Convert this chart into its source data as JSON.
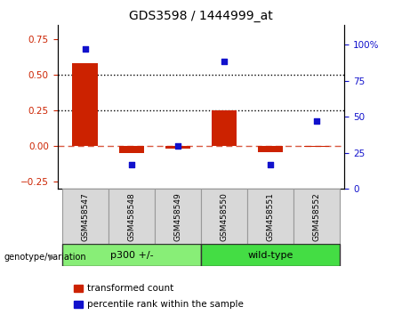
{
  "title": "GDS3598 / 1444999_at",
  "categories": [
    "GSM458547",
    "GSM458548",
    "GSM458549",
    "GSM458550",
    "GSM458551",
    "GSM458552"
  ],
  "bar_values": [
    0.585,
    -0.045,
    -0.015,
    0.255,
    -0.04,
    -0.005
  ],
  "scatter_values": [
    97,
    17,
    30,
    88,
    17,
    47
  ],
  "bar_color": "#cc2200",
  "scatter_color": "#1111cc",
  "ylim_left": [
    -0.3,
    0.85
  ],
  "ylim_right": [
    0,
    113.33
  ],
  "yticks_left": [
    -0.25,
    0.0,
    0.25,
    0.5,
    0.75
  ],
  "yticks_right": [
    0,
    25,
    50,
    75,
    100
  ],
  "hlines": [
    0.5,
    0.25
  ],
  "hline_y0": 0.0,
  "group1_label": "p300 +/-",
  "group2_label": "wild-type",
  "group1_indices": [
    0,
    1,
    2
  ],
  "group2_indices": [
    3,
    4,
    5
  ],
  "group1_color": "#88ee77",
  "group2_color": "#44dd44",
  "group_label": "genotype/variation",
  "legend_bar": "transformed count",
  "legend_scatter": "percentile rank within the sample",
  "tick_label_color_left": "#cc2200",
  "tick_label_color_right": "#1111cc",
  "bar_width": 0.55
}
